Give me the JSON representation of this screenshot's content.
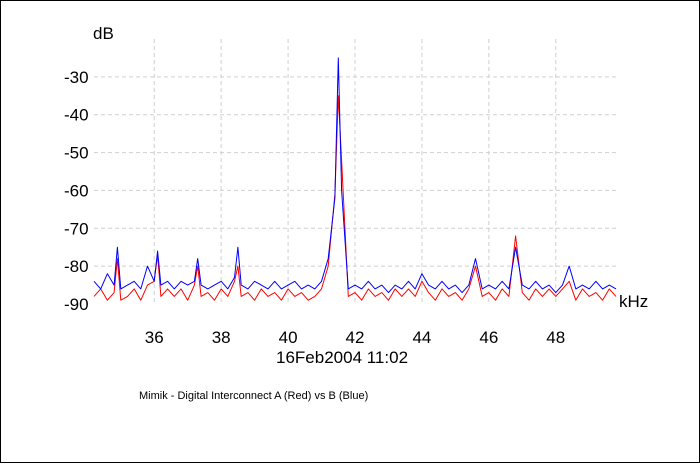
{
  "chart_data": {
    "type": "line",
    "ylabel": "dB",
    "xlabel": "kHz",
    "xlim": [
      34.2,
      49.8
    ],
    "ylim": [
      -90,
      -20
    ],
    "xticks": [
      36,
      38,
      40,
      42,
      44,
      46,
      48
    ],
    "yticks": [
      -30,
      -40,
      -50,
      -60,
      -70,
      -80,
      -90
    ],
    "grid": true,
    "date_stamp": "16Feb2004  11:02",
    "caption": "Mimik - Digital Interconnect A (Red) vs B (Blue)",
    "colors": {
      "red": "#ff0000",
      "blue": "#0000ff",
      "grid": "#d0d0d0"
    },
    "series": [
      {
        "name": "Red",
        "color": "#ff0000",
        "x": [
          34.2,
          34.4,
          34.6,
          34.8,
          34.9,
          35.0,
          35.2,
          35.4,
          35.6,
          35.8,
          36.0,
          36.1,
          36.2,
          36.4,
          36.6,
          36.8,
          37.0,
          37.2,
          37.3,
          37.4,
          37.6,
          37.8,
          38.0,
          38.2,
          38.4,
          38.5,
          38.6,
          38.8,
          39.0,
          39.2,
          39.4,
          39.6,
          39.8,
          40.0,
          40.2,
          40.4,
          40.6,
          40.8,
          41.0,
          41.2,
          41.4,
          41.5,
          41.6,
          41.8,
          42.0,
          42.2,
          42.4,
          42.6,
          42.8,
          43.0,
          43.2,
          43.4,
          43.6,
          43.8,
          44.0,
          44.2,
          44.4,
          44.6,
          44.8,
          45.0,
          45.2,
          45.4,
          45.6,
          45.8,
          46.0,
          46.2,
          46.4,
          46.6,
          46.8,
          47.0,
          47.2,
          47.4,
          47.6,
          47.8,
          48.0,
          48.2,
          48.4,
          48.6,
          48.8,
          49.0,
          49.2,
          49.4,
          49.6,
          49.8
        ],
        "values": [
          -88,
          -86,
          -89,
          -87,
          -78,
          -89,
          -88,
          -86,
          -89,
          -85,
          -84,
          -77,
          -88,
          -86,
          -88,
          -86,
          -89,
          -85,
          -80,
          -88,
          -87,
          -89,
          -86,
          -88,
          -84,
          -80,
          -88,
          -87,
          -89,
          -86,
          -88,
          -87,
          -89,
          -86,
          -88,
          -87,
          -89,
          -88,
          -86,
          -80,
          -61,
          -35,
          -52,
          -88,
          -87,
          -89,
          -86,
          -88,
          -87,
          -89,
          -86,
          -88,
          -86,
          -88,
          -84,
          -87,
          -89,
          -86,
          -88,
          -87,
          -89,
          -86,
          -80,
          -88,
          -87,
          -89,
          -86,
          -88,
          -72,
          -87,
          -89,
          -86,
          -88,
          -86,
          -88,
          -86,
          -84,
          -89,
          -86,
          -88,
          -87,
          -89,
          -86,
          -88
        ]
      },
      {
        "name": "Blue",
        "color": "#0000ff",
        "x": [
          34.2,
          34.4,
          34.6,
          34.8,
          34.9,
          35.0,
          35.2,
          35.4,
          35.6,
          35.8,
          36.0,
          36.1,
          36.2,
          36.4,
          36.6,
          36.8,
          37.0,
          37.2,
          37.3,
          37.4,
          37.6,
          37.8,
          38.0,
          38.2,
          38.4,
          38.5,
          38.6,
          38.8,
          39.0,
          39.2,
          39.4,
          39.6,
          39.8,
          40.0,
          40.2,
          40.4,
          40.6,
          40.8,
          41.0,
          41.2,
          41.4,
          41.5,
          41.6,
          41.8,
          42.0,
          42.2,
          42.4,
          42.6,
          42.8,
          43.0,
          43.2,
          43.4,
          43.6,
          43.8,
          44.0,
          44.2,
          44.4,
          44.6,
          44.8,
          45.0,
          45.2,
          45.4,
          45.6,
          45.8,
          46.0,
          46.2,
          46.4,
          46.6,
          46.8,
          47.0,
          47.2,
          47.4,
          47.6,
          47.8,
          48.0,
          48.2,
          48.4,
          48.6,
          48.8,
          49.0,
          49.2,
          49.4,
          49.6,
          49.8
        ],
        "values": [
          -84,
          -86,
          -82,
          -85,
          -75,
          -86,
          -85,
          -84,
          -86,
          -80,
          -84,
          -76,
          -85,
          -84,
          -86,
          -84,
          -85,
          -84,
          -78,
          -85,
          -86,
          -85,
          -84,
          -86,
          -83,
          -75,
          -85,
          -86,
          -84,
          -85,
          -86,
          -84,
          -86,
          -85,
          -84,
          -86,
          -85,
          -86,
          -84,
          -78,
          -62,
          -25,
          -60,
          -86,
          -85,
          -86,
          -84,
          -86,
          -85,
          -87,
          -85,
          -86,
          -84,
          -86,
          -82,
          -85,
          -86,
          -84,
          -86,
          -85,
          -87,
          -85,
          -78,
          -86,
          -85,
          -86,
          -84,
          -86,
          -75,
          -85,
          -86,
          -84,
          -86,
          -85,
          -87,
          -85,
          -80,
          -86,
          -85,
          -86,
          -84,
          -86,
          -85,
          -86
        ]
      }
    ]
  }
}
